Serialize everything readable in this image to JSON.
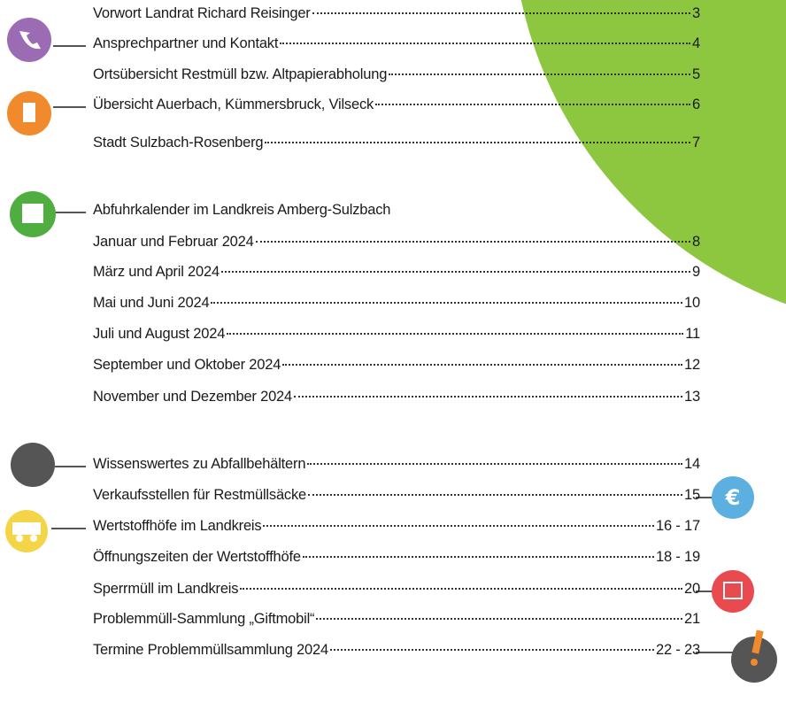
{
  "entries": [
    {
      "title": "Vorwort Landrat Richard Reisinger",
      "page": "3"
    },
    {
      "title": "Ansprechpartner und Kontakt",
      "page": "4"
    },
    {
      "title": "Ortsübersicht Restmüll bzw. Altpapierabholung",
      "page": "5"
    },
    {
      "title": "Übersicht Auerbach, Kümmersbruck, Vilseck",
      "page": "6"
    },
    {
      "title": "Stadt Sulzbach-Rosenberg",
      "page": "7"
    },
    {
      "title": "Abfuhrkalender im Landkreis Amberg-Sulzbach"
    },
    {
      "title": "Januar und Februar 2024",
      "page": "8"
    },
    {
      "title": "März und April 2024",
      "page": "9"
    },
    {
      "title": "Mai und Juni 2024",
      "page": "10"
    },
    {
      "title": "Juli und August 2024",
      "page": "11"
    },
    {
      "title": "September und Oktober 2024",
      "page": "12"
    },
    {
      "title": "November und Dezember 2024",
      "page": "13"
    },
    {
      "title": "Wissenswertes zu Abfallbehältern",
      "page": "14"
    },
    {
      "title": "Verkaufsstellen für Restmüllsäcke",
      "page": "15"
    },
    {
      "title": "Wertstoffhöfe im Landkreis",
      "page": "16 - 17"
    },
    {
      "title": "Öffnungszeiten der Wertstoffhöfe",
      "page": "18 - 19"
    },
    {
      "title": "Sperrmüll im Landkreis",
      "page": "20"
    },
    {
      "title": "Problemmüll-Sammlung „Giftmobil“",
      "page": "21"
    },
    {
      "title": "Termine Problemmüllsammlung 2024",
      "page": "22 - 23"
    }
  ]
}
